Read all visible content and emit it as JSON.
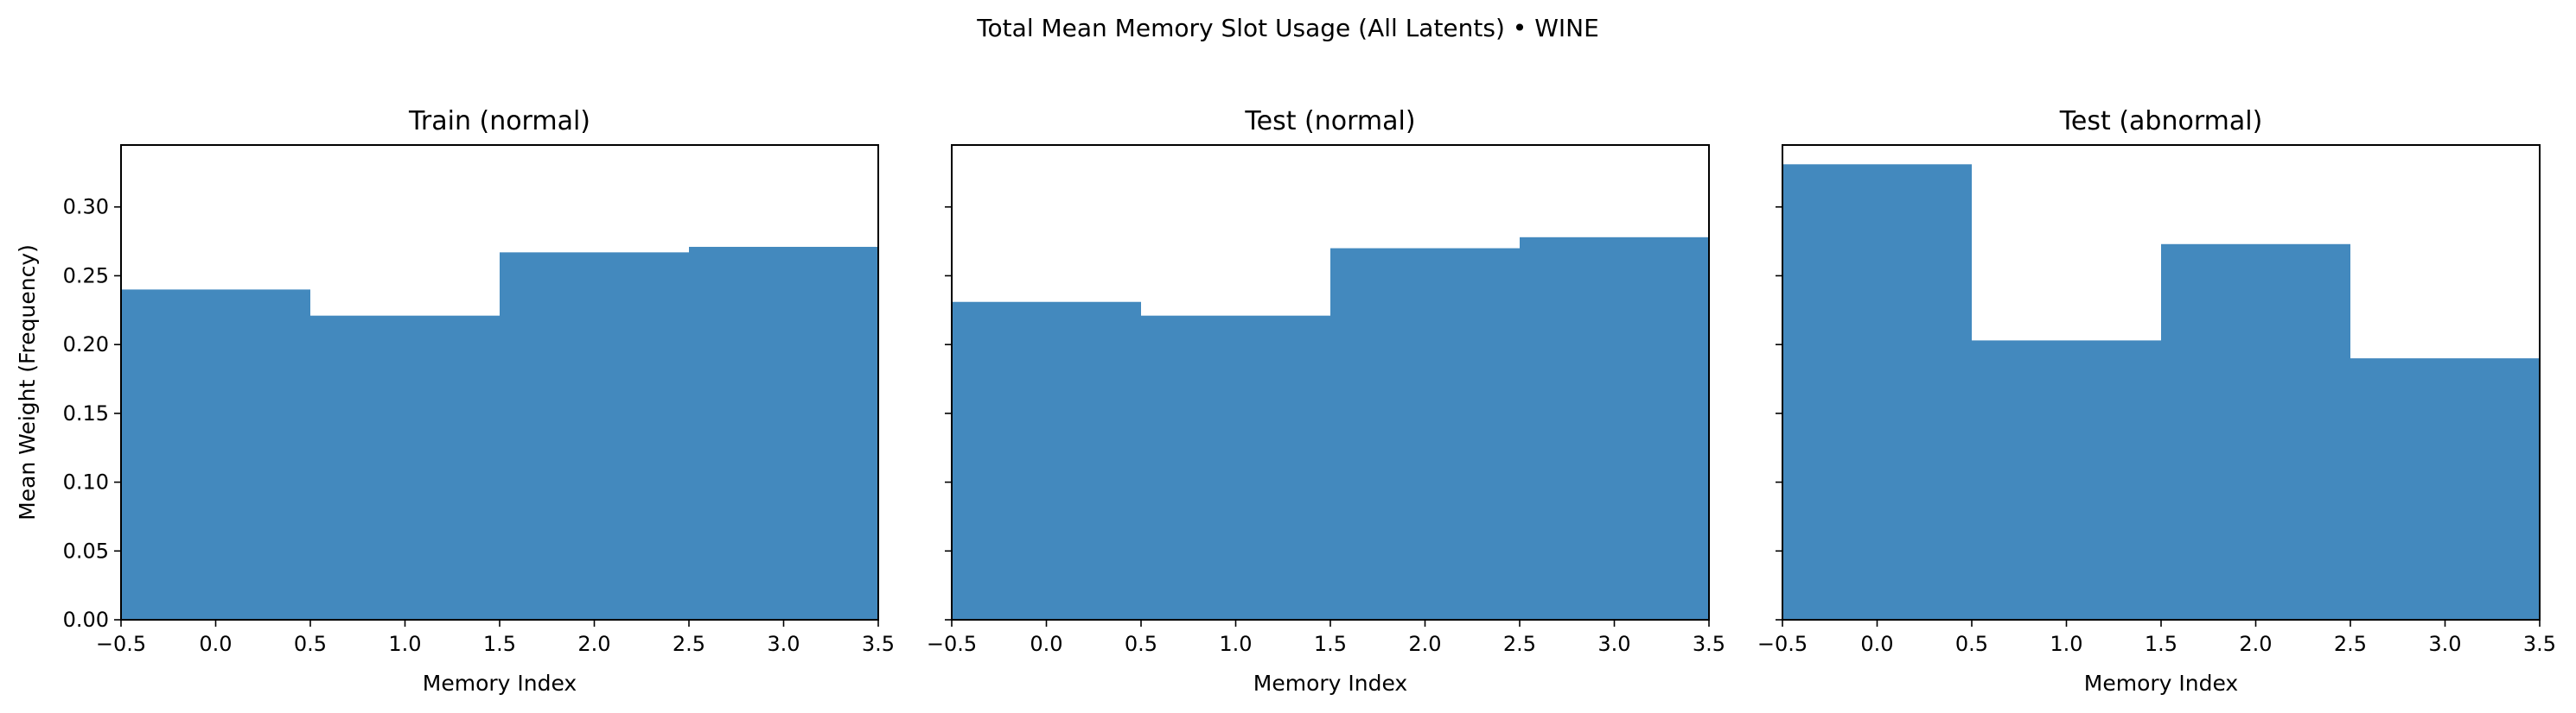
{
  "figure": {
    "suptitle": "Total Mean Memory Slot Usage (All Latents) • WINE"
  },
  "chart_data": [
    {
      "type": "bar",
      "title": "Train (normal)",
      "xlabel": "Memory Index",
      "ylabel": "Mean Weight (Frequency)",
      "categories": [
        0,
        1,
        2,
        3
      ],
      "values": [
        0.24,
        0.221,
        0.267,
        0.271
      ],
      "xlim": [
        -0.5,
        3.5
      ],
      "ylim": [
        0,
        0.345
      ],
      "xticks": [
        -0.5,
        0.0,
        0.5,
        1.0,
        1.5,
        2.0,
        2.5,
        3.0,
        3.5
      ],
      "yticks": [
        0.0,
        0.05,
        0.1,
        0.15,
        0.2,
        0.25,
        0.3
      ],
      "show_ytick_labels": true,
      "grid": false,
      "bar_color": "#4389be"
    },
    {
      "type": "bar",
      "title": "Test (normal)",
      "xlabel": "Memory Index",
      "ylabel": "",
      "categories": [
        0,
        1,
        2,
        3
      ],
      "values": [
        0.231,
        0.221,
        0.27,
        0.278
      ],
      "xlim": [
        -0.5,
        3.5
      ],
      "ylim": [
        0,
        0.345
      ],
      "xticks": [
        -0.5,
        0.0,
        0.5,
        1.0,
        1.5,
        2.0,
        2.5,
        3.0,
        3.5
      ],
      "yticks": [
        0.0,
        0.05,
        0.1,
        0.15,
        0.2,
        0.25,
        0.3
      ],
      "show_ytick_labels": false,
      "grid": false,
      "bar_color": "#4389be"
    },
    {
      "type": "bar",
      "title": "Test (abnormal)",
      "xlabel": "Memory Index",
      "ylabel": "",
      "categories": [
        0,
        1,
        2,
        3
      ],
      "values": [
        0.331,
        0.203,
        0.273,
        0.19
      ],
      "xlim": [
        -0.5,
        3.5
      ],
      "ylim": [
        0,
        0.345
      ],
      "xticks": [
        -0.5,
        0.0,
        0.5,
        1.0,
        1.5,
        2.0,
        2.5,
        3.0,
        3.5
      ],
      "yticks": [
        0.0,
        0.05,
        0.1,
        0.15,
        0.2,
        0.25,
        0.3
      ],
      "show_ytick_labels": false,
      "grid": false,
      "bar_color": "#4389be"
    }
  ]
}
